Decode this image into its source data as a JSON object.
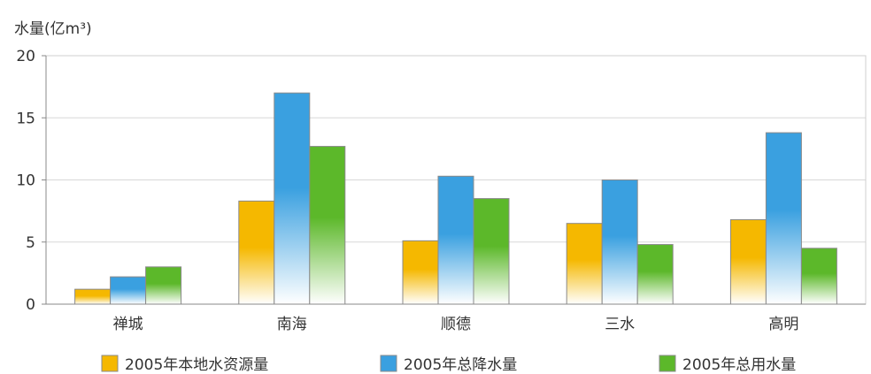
{
  "chart_data": {
    "type": "bar",
    "ylabel": "水量(亿m³)",
    "ylim": [
      0,
      20
    ],
    "yticks": [
      0,
      5,
      10,
      15,
      20
    ],
    "categories": [
      "禅城",
      "南海",
      "顺德",
      "三水",
      "高明"
    ],
    "series": [
      {
        "name": "2005年本地水资源量",
        "values": [
          1.2,
          8.3,
          5.1,
          6.5,
          6.8
        ],
        "color": "#f5b800"
      },
      {
        "name": "2005年总降水量",
        "values": [
          2.2,
          17.0,
          10.3,
          10.0,
          13.8
        ],
        "color": "#3aa0e0"
      },
      {
        "name": "2005年总用水量",
        "values": [
          3.0,
          12.7,
          8.5,
          4.8,
          4.5
        ],
        "color": "#5cb82a"
      }
    ],
    "grid": true,
    "legend_position": "bottom"
  }
}
